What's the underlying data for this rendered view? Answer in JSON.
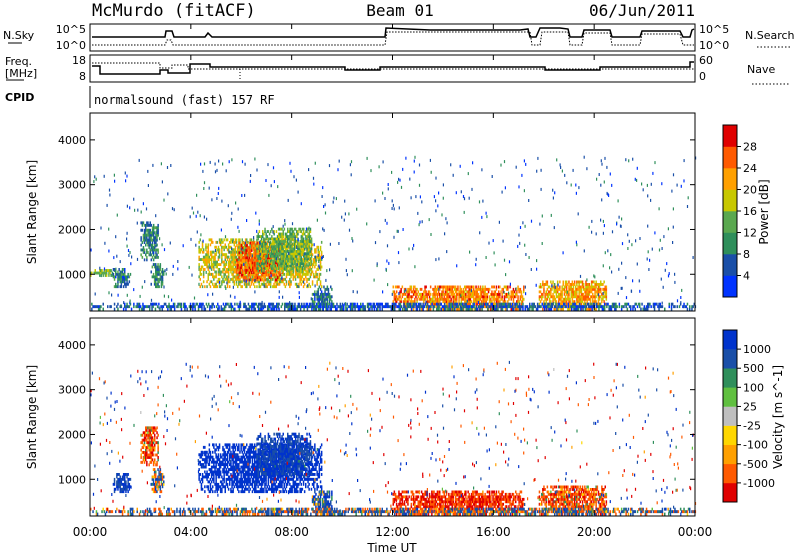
{
  "header": {
    "station": "McMurdo (fitACF)",
    "beam": "Beam 01",
    "date": "06/Jun/2011"
  },
  "noise_panel": {
    "left_label": "N.Sky",
    "left_ticks": [
      "10^5",
      "10^0"
    ],
    "right_label": "N.Search",
    "right_ticks": [
      "10^5",
      "10^0"
    ]
  },
  "freq_panel": {
    "left_label_1": "Freq.",
    "left_label_2": "[MHz]",
    "left_ticks": [
      "18",
      "8"
    ],
    "right_label": "Nave",
    "right_ticks": [
      "60",
      "0"
    ]
  },
  "cpid_panel": {
    "label": "CPID",
    "text": "normalsound (fast) 157 RF"
  },
  "x_axis": {
    "title": "Time UT",
    "ticks": [
      "00:00",
      "04:00",
      "08:00",
      "12:00",
      "16:00",
      "20:00",
      "00:00"
    ]
  },
  "colors": {
    "power": [
      "#0033ff",
      "#1a4fa8",
      "#2f8f5b",
      "#5aa84f",
      "#c8c800",
      "#ffa000",
      "#ff5a00",
      "#e00000"
    ],
    "velocity": [
      "#e00000",
      "#ff5a00",
      "#ffa000",
      "#ffd700",
      "#bfbfbf",
      "#60c040",
      "#2f8f5b",
      "#1a4fa8",
      "#0033cc"
    ]
  },
  "chart_data": [
    {
      "type": "heatmap",
      "title": "Power",
      "ylabel": "Slant Range [km]",
      "xlabel": "Time UT",
      "xlim": [
        0,
        24
      ],
      "ylim": [
        180,
        4600
      ],
      "y_ticks": [
        "1000",
        "2000",
        "3000",
        "4000"
      ],
      "colorbar": {
        "label": "Power [dB]",
        "ticks": [
          "4",
          "8",
          "12",
          "16",
          "20",
          "24",
          "28"
        ],
        "range": [
          0,
          32
        ]
      },
      "regions": [
        {
          "t0": 0.0,
          "t1": 1.0,
          "r0": 950,
          "r1": 1100,
          "value": 14
        },
        {
          "t0": 0.9,
          "t1": 1.6,
          "r0": 700,
          "r1": 1100,
          "value": 8
        },
        {
          "t0": 2.0,
          "t1": 2.7,
          "r0": 1300,
          "r1": 2150,
          "value": 9
        },
        {
          "t0": 2.4,
          "t1": 2.9,
          "r0": 700,
          "r1": 1200,
          "value": 10
        },
        {
          "t0": 4.3,
          "t1": 9.2,
          "r0": 700,
          "r1": 1800,
          "value": 18
        },
        {
          "t0": 5.8,
          "t1": 7.6,
          "r0": 850,
          "r1": 1700,
          "value": 26
        },
        {
          "t0": 6.6,
          "t1": 8.8,
          "r0": 1050,
          "r1": 2000,
          "value": 14
        },
        {
          "t0": 8.8,
          "t1": 9.6,
          "r0": 200,
          "r1": 700,
          "value": 8
        },
        {
          "t0": 12.0,
          "t1": 17.2,
          "r0": 200,
          "r1": 750,
          "value": 24
        },
        {
          "t0": 17.8,
          "t1": 20.5,
          "r0": 200,
          "r1": 850,
          "value": 22
        },
        {
          "t0": 0.0,
          "t1": 24.0,
          "r0": 200,
          "r1": 320,
          "value": 6
        }
      ]
    },
    {
      "type": "heatmap",
      "title": "Velocity",
      "ylabel": "Slant Range [km]",
      "xlabel": "Time UT",
      "xlim": [
        0,
        24
      ],
      "ylim": [
        180,
        4600
      ],
      "y_ticks": [
        "1000",
        "2000",
        "3000",
        "4000"
      ],
      "colorbar": {
        "label": "Velocity [m s^-1]",
        "ticks": [
          "-1000",
          "-500",
          "-100",
          "-25",
          "25",
          "100",
          "500",
          "1000"
        ],
        "range": [
          -1500,
          1500
        ]
      },
      "regions": [
        {
          "t0": 0.9,
          "t1": 1.6,
          "r0": 700,
          "r1": 1100,
          "value": 300
        },
        {
          "t0": 2.0,
          "t1": 2.7,
          "r0": 1300,
          "r1": 2150,
          "value": -200
        },
        {
          "t0": 2.4,
          "t1": 2.9,
          "r0": 700,
          "r1": 1200,
          "value": 80
        },
        {
          "t0": 4.3,
          "t1": 9.2,
          "r0": 700,
          "r1": 1800,
          "value": 600
        },
        {
          "t0": 6.6,
          "t1": 8.8,
          "r0": 1050,
          "r1": 2000,
          "value": 300
        },
        {
          "t0": 8.8,
          "t1": 9.6,
          "r0": 200,
          "r1": 700,
          "value": 200
        },
        {
          "t0": 12.0,
          "t1": 17.2,
          "r0": 200,
          "r1": 750,
          "value": -300
        },
        {
          "t0": 17.8,
          "t1": 20.5,
          "r0": 200,
          "r1": 850,
          "value": -200
        },
        {
          "t0": 0.0,
          "t1": 24.0,
          "r0": 200,
          "r1": 320,
          "value": 60
        }
      ]
    }
  ]
}
